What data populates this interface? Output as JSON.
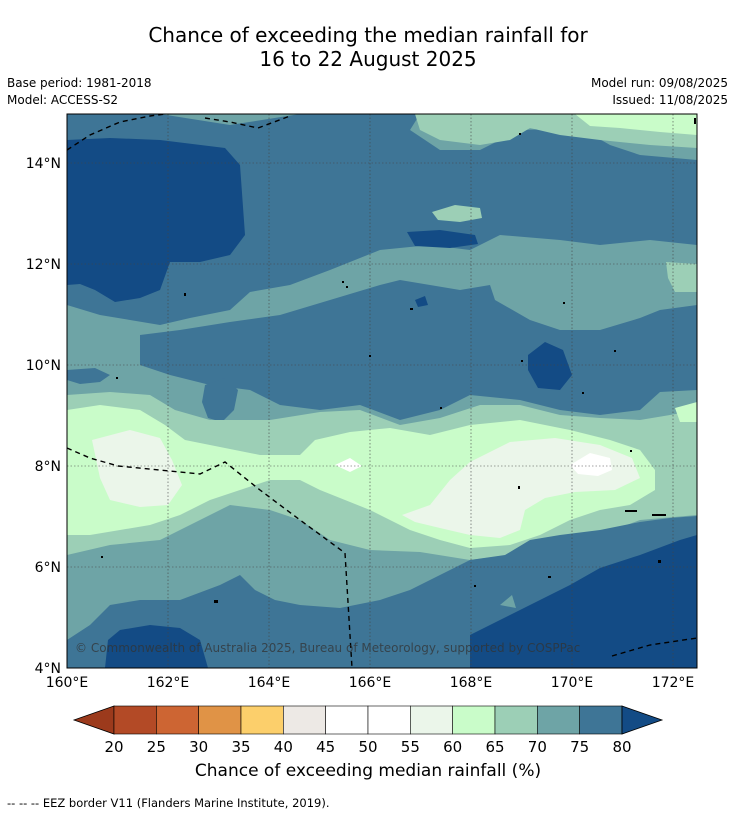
{
  "header": {
    "title_line1": "Chance of exceeding the median rainfall for",
    "title_line2": "16 to 22 August 2025",
    "base_period": "Base period: 1981-2018",
    "model": "Model: ACCESS-S2",
    "model_run": "Model run: 09/08/2025",
    "issued": "Issued: 11/08/2025"
  },
  "map": {
    "lon_ticks": [
      "160°E",
      "162°E",
      "164°E",
      "166°E",
      "168°E",
      "170°E",
      "172°E"
    ],
    "lat_ticks": [
      "14°N",
      "12°N",
      "10°N",
      "8°N",
      "6°N",
      "4°N"
    ],
    "copyright": "© Commonwealth of Australia 2025, Bureau of Meteorology, supported by COSPPac",
    "colors": {
      "c60_65": "#c9fcc9",
      "c65_70": "#9ccfb6",
      "c70_75": "#6ea4a6",
      "c75_80": "#3e7596",
      "c80_up": "#134b85",
      "c55_60": "#ebf6ea",
      "c50_55": "#ffffff"
    }
  },
  "colorbar": {
    "ticks": [
      "20",
      "25",
      "30",
      "35",
      "40",
      "45",
      "50",
      "55",
      "60",
      "65",
      "70",
      "75",
      "80"
    ],
    "colors": [
      "#b34a26",
      "#cd6533",
      "#e09346",
      "#fccf6b",
      "#ede9e5",
      "#ffffff",
      "#ffffff",
      "#ebf6ea",
      "#c9fcc9",
      "#9ccfb6",
      "#6ea4a6",
      "#3e7596"
    ],
    "under_color": "#9c3a1c",
    "over_color": "#134b85",
    "label": "Chance of exceeding median rainfall (%)"
  },
  "footer": "--  --  -- EEZ border V11 (Flanders Marine Institute, 2019)."
}
